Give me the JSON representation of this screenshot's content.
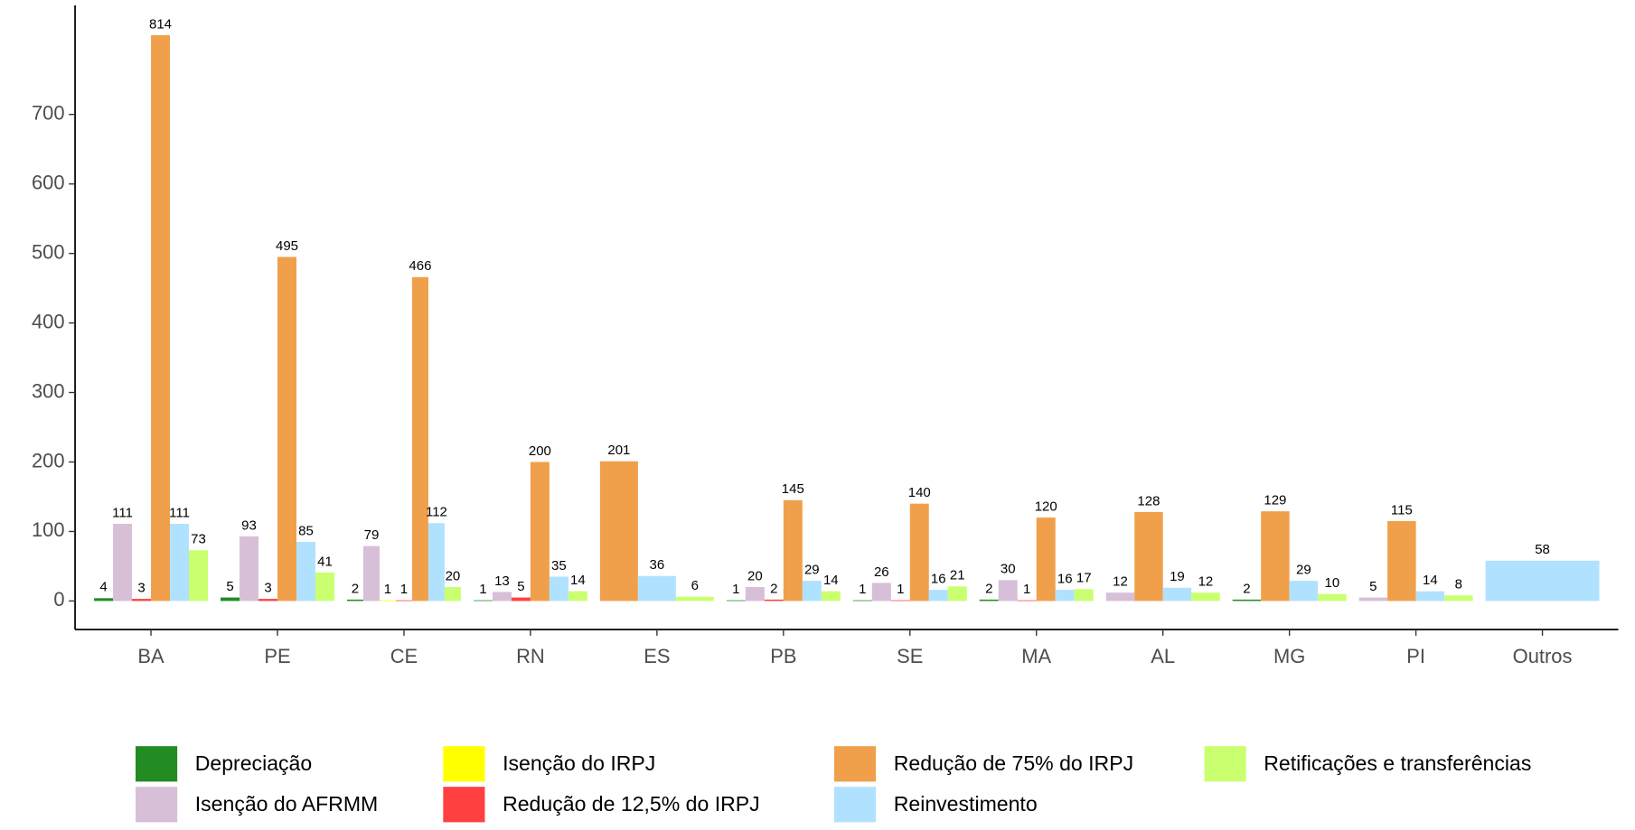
{
  "chart_data": {
    "type": "bar",
    "categories": [
      "BA",
      "PE",
      "CE",
      "RN",
      "ES",
      "PB",
      "SE",
      "MA",
      "AL",
      "MG",
      "PI",
      "Outros"
    ],
    "series": [
      {
        "name": "Depreciação",
        "color": "#228b22",
        "values": [
          4,
          5,
          2,
          1,
          null,
          1,
          1,
          2,
          null,
          2,
          null,
          null
        ]
      },
      {
        "name": "Isenção do AFRMM",
        "color": "#d8bfd8",
        "values": [
          111,
          93,
          79,
          13,
          null,
          20,
          26,
          30,
          12,
          null,
          5,
          null
        ]
      },
      {
        "name": "Isenção do IRPJ",
        "color": "#ffff00",
        "values": [
          null,
          null,
          1,
          null,
          null,
          null,
          null,
          null,
          null,
          null,
          null,
          null
        ]
      },
      {
        "name": "Redução de 12,5% do IRPJ",
        "color": "#ff4040",
        "values": [
          3,
          3,
          1,
          5,
          null,
          2,
          1,
          1,
          null,
          null,
          null,
          null
        ]
      },
      {
        "name": "Redução de 75% do IRPJ",
        "color": "#f0a04b",
        "values": [
          814,
          495,
          466,
          200,
          201,
          145,
          140,
          120,
          128,
          129,
          115,
          null
        ]
      },
      {
        "name": "Reinvestimento",
        "color": "#b0e2ff",
        "values": [
          111,
          85,
          112,
          35,
          36,
          29,
          16,
          16,
          19,
          29,
          14,
          58
        ]
      },
      {
        "name": "Retificações e transferências",
        "color": "#caff70",
        "values": [
          73,
          41,
          20,
          14,
          6,
          14,
          21,
          17,
          12,
          10,
          8,
          null
        ]
      }
    ],
    "ylim": [
      -41,
      857
    ],
    "yticks": [
      0,
      100,
      200,
      300,
      400,
      500,
      600,
      700
    ],
    "legend": "bottom",
    "grid": false
  }
}
